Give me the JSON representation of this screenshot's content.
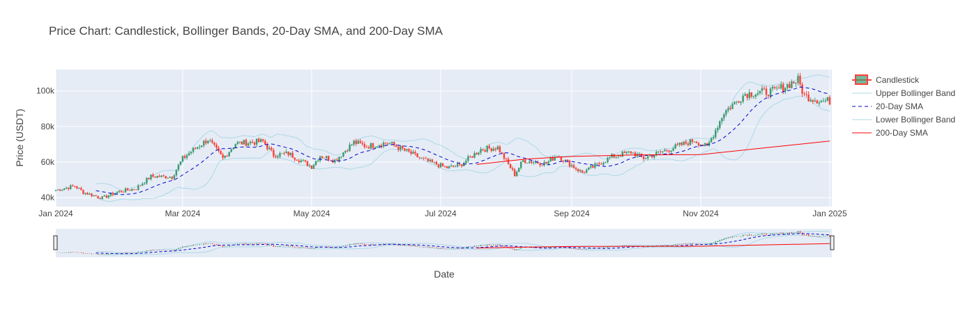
{
  "chart_data": {
    "type": "candlestick",
    "title": "Price Chart: Candlestick, Bollinger Bands, 20-Day SMA, and 200-Day SMA",
    "xlabel": "Date",
    "ylabel": "Price (USDT)",
    "xlim": [
      "2024-01-01",
      "2025-01-02"
    ],
    "ylim": [
      35000,
      112000
    ],
    "x_ticks": [
      {
        "date": "2024-01-01",
        "label": "Jan 2024"
      },
      {
        "date": "2024-03-01",
        "label": "Mar 2024"
      },
      {
        "date": "2024-05-01",
        "label": "May 2024"
      },
      {
        "date": "2024-07-01",
        "label": "Jul 2024"
      },
      {
        "date": "2024-09-01",
        "label": "Sep 2024"
      },
      {
        "date": "2024-11-01",
        "label": "Nov 2024"
      },
      {
        "date": "2025-01-01",
        "label": "Jan 2025"
      }
    ],
    "y_ticks": [
      {
        "value": 40000,
        "label": "40k"
      },
      {
        "value": 60000,
        "label": "60k"
      },
      {
        "value": 80000,
        "label": "80k"
      },
      {
        "value": 100000,
        "label": "100k"
      }
    ],
    "grid": true,
    "range_slider": true,
    "legend_position": "right",
    "colors": {
      "plot_bg": "#e5ecf6",
      "grid": "#ffffff",
      "increasing": "#3d9970",
      "decreasing": "#ff4136",
      "bollinger": "#add8e6",
      "sma20": "#0000cd",
      "sma200": "#ff0000"
    },
    "legend": [
      {
        "key": "candlestick",
        "label": "Candlestick"
      },
      {
        "key": "upper",
        "label": "Upper Bollinger Band"
      },
      {
        "key": "sma20",
        "label": "20-Day SMA"
      },
      {
        "key": "lower",
        "label": "Lower Bollinger Band"
      },
      {
        "key": "sma200",
        "label": "200-Day SMA"
      }
    ],
    "close_anchors": [
      [
        "2024-01-01",
        44200
      ],
      [
        "2024-01-10",
        46600
      ],
      [
        "2024-01-14",
        43000
      ],
      [
        "2024-01-23",
        39800
      ],
      [
        "2024-01-30",
        43200
      ],
      [
        "2024-02-08",
        45200
      ],
      [
        "2024-02-15",
        52000
      ],
      [
        "2024-02-25",
        51700
      ],
      [
        "2024-03-01",
        62000
      ],
      [
        "2024-03-05",
        66000
      ],
      [
        "2024-03-13",
        72800
      ],
      [
        "2024-03-20",
        62000
      ],
      [
        "2024-03-26",
        70500
      ],
      [
        "2024-04-08",
        71600
      ],
      [
        "2024-04-13",
        64000
      ],
      [
        "2024-04-20",
        64800
      ],
      [
        "2024-05-01",
        57500
      ],
      [
        "2024-05-05",
        63600
      ],
      [
        "2024-05-12",
        61000
      ],
      [
        "2024-05-21",
        71200
      ],
      [
        "2024-05-27",
        68800
      ],
      [
        "2024-06-06",
        71000
      ],
      [
        "2024-06-15",
        66000
      ],
      [
        "2024-06-24",
        60700
      ],
      [
        "2024-07-04",
        56800
      ],
      [
        "2024-07-10",
        58100
      ],
      [
        "2024-07-20",
        67200
      ],
      [
        "2024-07-28",
        68200
      ],
      [
        "2024-08-05",
        53000
      ],
      [
        "2024-08-09",
        60900
      ],
      [
        "2024-08-20",
        59200
      ],
      [
        "2024-08-25",
        64000
      ],
      [
        "2024-09-06",
        54000
      ],
      [
        "2024-09-20",
        63000
      ],
      [
        "2024-09-29",
        65600
      ],
      [
        "2024-10-05",
        62200
      ],
      [
        "2024-10-14",
        66000
      ],
      [
        "2024-10-29",
        72300
      ],
      [
        "2024-11-04",
        68300
      ],
      [
        "2024-11-12",
        88000
      ],
      [
        "2024-11-22",
        98400
      ],
      [
        "2024-12-06",
        99900
      ],
      [
        "2024-12-17",
        106100
      ],
      [
        "2024-12-20",
        97300
      ],
      [
        "2024-12-28",
        94300
      ],
      [
        "2025-01-01",
        94400
      ]
    ],
    "sma200": {
      "start": "2024-07-18",
      "points": [
        [
          "2024-07-18",
          58700
        ],
        [
          "2024-08-10",
          61700
        ],
        [
          "2024-09-01",
          63200
        ],
        [
          "2024-10-01",
          64000
        ],
        [
          "2024-11-01",
          64200
        ],
        [
          "2024-12-01",
          68000
        ],
        [
          "2025-01-01",
          71800
        ]
      ]
    }
  }
}
